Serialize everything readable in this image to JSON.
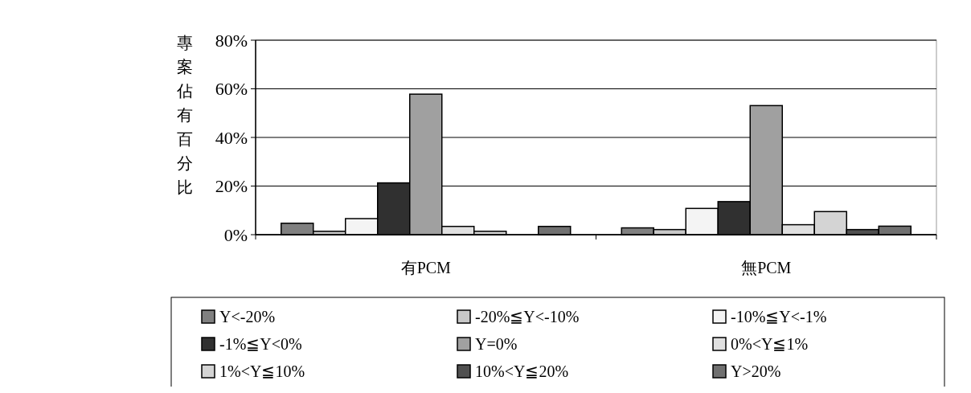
{
  "chart_data": {
    "type": "bar",
    "ylabel": "專案佔有百分比",
    "categories": [
      "有PCM",
      "無PCM"
    ],
    "series": [
      {
        "name": "Y<-20%",
        "color": "#808080",
        "values": [
          4.7,
          2.8
        ]
      },
      {
        "name": "-20%≦Y<-10%",
        "color": "#c8c8c8",
        "values": [
          1.4,
          2.1
        ]
      },
      {
        "name": "-10%≦Y<-1%",
        "color": "#f4f4f4",
        "values": [
          6.6,
          10.8
        ]
      },
      {
        "name": "-1%≦Y<0%",
        "color": "#303030",
        "values": [
          21.3,
          13.6
        ]
      },
      {
        "name": "Y=0%",
        "color": "#a0a0a0",
        "values": [
          57.8,
          53.1
        ]
      },
      {
        "name": "0%<Y≦1%",
        "color": "#e0e0e0",
        "values": [
          3.4,
          4.1
        ]
      },
      {
        "name": "1%<Y≦10%",
        "color": "#d4d4d4",
        "values": [
          1.4,
          9.5
        ]
      },
      {
        "name": "10%<Y≦20%",
        "color": "#505050",
        "values": [
          0,
          2.1
        ]
      },
      {
        "name": "Y>20%",
        "color": "#707070",
        "values": [
          3.4,
          3.5
        ]
      }
    ],
    "ylim": [
      0,
      80
    ],
    "yticks": [
      {
        "value": 0,
        "label": "0%"
      },
      {
        "value": 20,
        "label": "20%"
      },
      {
        "value": 40,
        "label": "40%"
      },
      {
        "value": 60,
        "label": "60%"
      },
      {
        "value": 80,
        "label": "80%"
      }
    ],
    "grid": "y",
    "legend": "bottom"
  }
}
